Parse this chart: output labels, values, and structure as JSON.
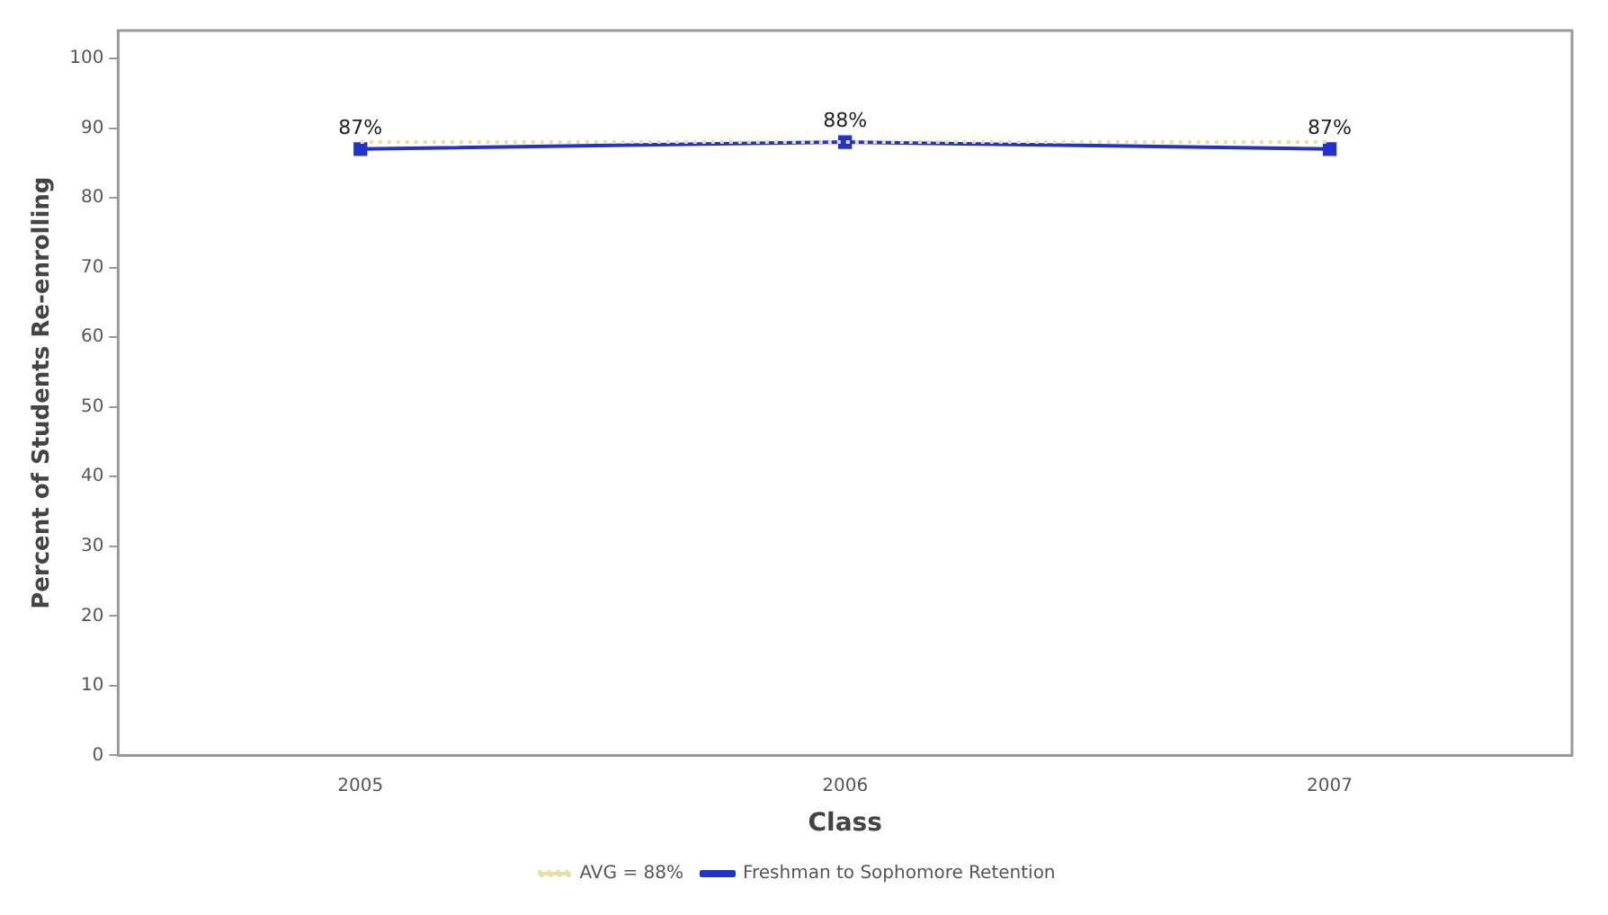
{
  "chart_data": {
    "type": "line",
    "xlabel": "Class",
    "ylabel": "Percent of Students Re-enrolling",
    "categories": [
      "2005",
      "2006",
      "2007"
    ],
    "series": [
      {
        "name": "Freshman to Sophomore Retention",
        "color": "#2233cc",
        "values": [
          87,
          88,
          87
        ],
        "value_labels": [
          "87%",
          "88%",
          "87%"
        ],
        "marker": "square",
        "line_style": "solid"
      },
      {
        "name": "AVG = 88%",
        "color": "#e8e0a0",
        "values": [
          88,
          88,
          88
        ],
        "marker": "none",
        "line_style": "dotted"
      }
    ],
    "ylim": [
      0,
      104
    ],
    "yticks": [
      0,
      10,
      20,
      30,
      40,
      50,
      60,
      70,
      80,
      90,
      100
    ],
    "grid": false,
    "legend": "bottom"
  }
}
